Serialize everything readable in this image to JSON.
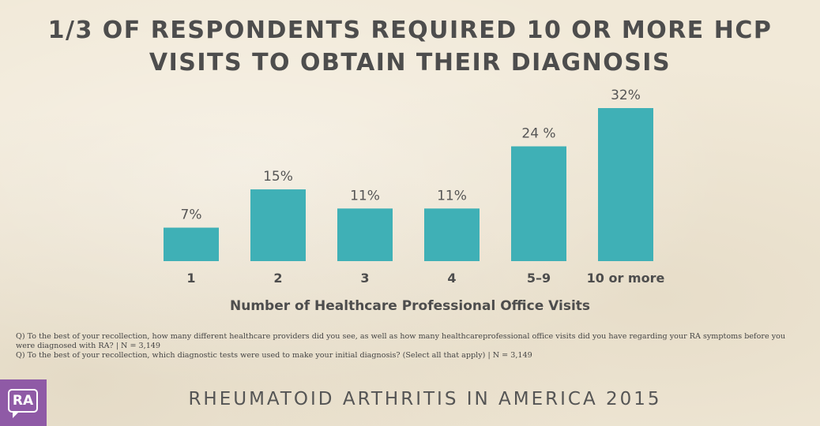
{
  "title_lines": [
    "1/3 OF RESPONDENTS REQUIRED 10 OR MORE HCP",
    "VISITS TO OBTAIN THEIR DIAGNOSIS"
  ],
  "chart_data": {
    "type": "bar",
    "title": "1/3 OF RESPONDENTS REQUIRED 10 OR MORE HCP VISITS TO OBTAIN THEIR DIAGNOSIS",
    "xlabel": "Number of Healthcare Professional Office Visits",
    "ylabel": "",
    "categories": [
      "1",
      "2",
      "3",
      "4",
      "5–9",
      "10 or more"
    ],
    "values": [
      7,
      15,
      11,
      11,
      24,
      32
    ],
    "data_labels": [
      "7%",
      "15%",
      "11%",
      "11%",
      "24 %",
      "32%"
    ],
    "ylim": [
      0,
      32
    ],
    "grid": false,
    "legend": "none",
    "bar_color": "#3fb0b6"
  },
  "notes": [
    "Q) To the best of your recollection, how many different healthcare providers did you see, as well as how many healthcareprofessional office visits did you have regarding your RA symptoms before you were diagnosed with RA? | N = 3,149",
    "Q) To the best of your recollection, which diagnostic tests were used to make your initial diagnosis? (Select all that apply) | N = 3,149"
  ],
  "logo_text": "RA",
  "logo_color": "#8f5aa6",
  "footer": "RHEUMATOID ARTHRITIS IN AMERICA 2015"
}
